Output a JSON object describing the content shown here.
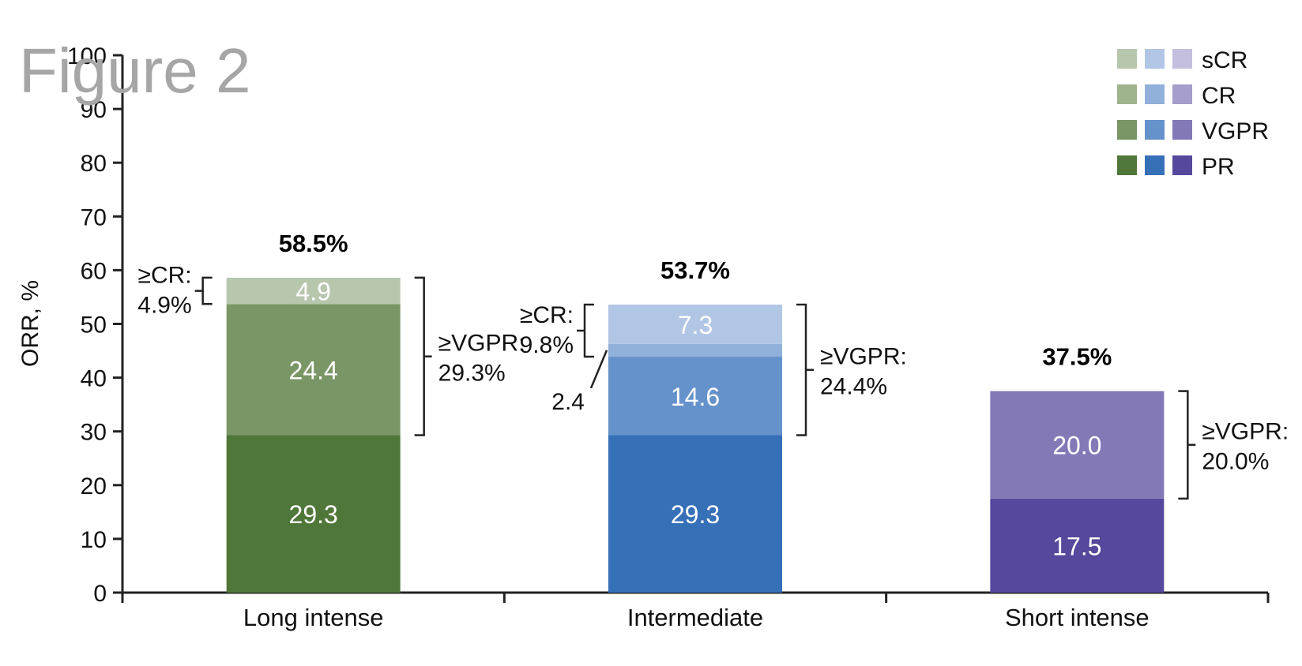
{
  "figure_label": "Figure 2",
  "chart_data": {
    "type": "bar",
    "stacked": true,
    "ylabel": "ORR, %",
    "ylim": [
      0,
      100
    ],
    "yticks": [
      "0",
      "10",
      "20",
      "30",
      "40",
      "50",
      "60",
      "70",
      "80",
      "90",
      "100"
    ],
    "categories": [
      "Long intense",
      "Intermediate",
      "Short intense"
    ],
    "series_labels": [
      "PR",
      "VGPR",
      "CR",
      "sCR"
    ],
    "legend_order": [
      "sCR",
      "CR",
      "VGPR",
      "PR"
    ],
    "legend_position": "top-right",
    "groups": [
      {
        "category": "Long intense",
        "total_label": "58.5%",
        "segments": [
          {
            "series": "PR",
            "value": 29.3,
            "label": "29.3",
            "color": "#50773a"
          },
          {
            "series": "VGPR",
            "value": 24.4,
            "label": "24.4",
            "color": "#7b9666"
          },
          {
            "series": "CR",
            "value": 0,
            "label": "",
            "color": "#9fb48d"
          },
          {
            "series": "sCR",
            "value": 4.9,
            "label": "4.9",
            "color": "#b7c6ad"
          }
        ],
        "brackets": [
          {
            "side": "left",
            "lines": [
              "≥CR:",
              "4.9%"
            ]
          },
          {
            "side": "right",
            "lines": [
              "≥VGPR:",
              "29.3%"
            ]
          }
        ]
      },
      {
        "category": "Intermediate",
        "total_label": "53.7%",
        "segments": [
          {
            "series": "PR",
            "value": 29.3,
            "label": "29.3",
            "color": "#3670b7"
          },
          {
            "series": "VGPR",
            "value": 14.6,
            "label": "14.6",
            "color": "#6592cb"
          },
          {
            "series": "CR",
            "value": 2.4,
            "label": "2.4",
            "color": "#91b0da"
          },
          {
            "series": "sCR",
            "value": 7.3,
            "label": "7.3",
            "color": "#b1c5e5"
          }
        ],
        "brackets": [
          {
            "side": "left",
            "lines": [
              "≥CR:",
              "9.8%"
            ]
          },
          {
            "side": "right",
            "lines": [
              "≥VGPR:",
              "24.4%"
            ]
          }
        ]
      },
      {
        "category": "Short intense",
        "total_label": "37.5%",
        "segments": [
          {
            "series": "PR",
            "value": 17.5,
            "label": "17.5",
            "color": "#56489c"
          },
          {
            "series": "VGPR",
            "value": 20.0,
            "label": "20.0",
            "color": "#8479b7"
          },
          {
            "series": "CR",
            "value": 0,
            "label": "",
            "color": "#a59dcb"
          },
          {
            "series": "sCR",
            "value": 0,
            "label": "",
            "color": "#c4bfde"
          }
        ],
        "brackets": [
          {
            "side": "right",
            "lines": [
              "≥VGPR:",
              "20.0%"
            ]
          }
        ]
      }
    ]
  }
}
